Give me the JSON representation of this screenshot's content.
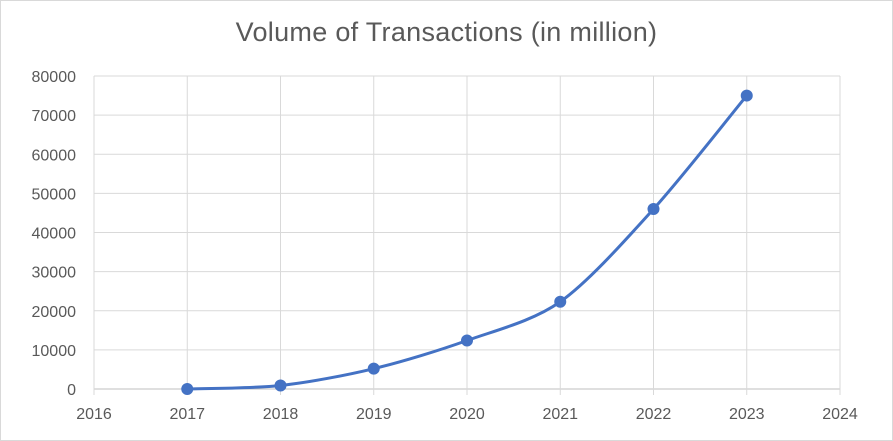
{
  "chart_data": {
    "type": "line",
    "title": "Volume of Transactions (in million)",
    "xlabel": "",
    "ylabel": "",
    "xlim": [
      2016,
      2024
    ],
    "ylim": [
      0,
      80000
    ],
    "x_ticks": [
      "2016",
      "2017",
      "2018",
      "2019",
      "2020",
      "2021",
      "2022",
      "2023",
      "2024"
    ],
    "y_ticks": [
      "0",
      "10000",
      "20000",
      "30000",
      "40000",
      "50000",
      "60000",
      "70000",
      "80000"
    ],
    "grid": true,
    "legend": "none",
    "series_color": "#4472c4",
    "series": [
      {
        "x": [
          2017,
          2018,
          2019,
          2020,
          2021,
          2022,
          2023
        ],
        "values": [
          0,
          900,
          5200,
          12400,
          22300,
          46000,
          75000
        ]
      }
    ]
  }
}
